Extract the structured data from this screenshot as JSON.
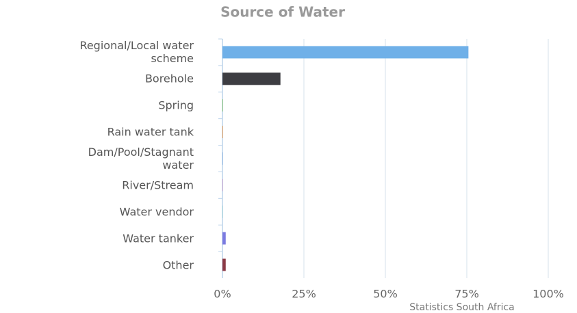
{
  "chart_data": {
    "type": "bar",
    "orientation": "horizontal",
    "title": "Source of Water",
    "categories": [
      "Regional/Local water scheme",
      "Borehole",
      "Spring",
      "Rain water tank",
      "Dam/Pool/Stagnant water",
      "River/Stream",
      "Water vendor",
      "Water tanker",
      "Other"
    ],
    "values": [
      75.5,
      17.8,
      0.2,
      0.2,
      0.1,
      0.1,
      0.1,
      1.0,
      1.0
    ],
    "colors": [
      "#6fb0e8",
      "#3d3d42",
      "#8fc77a",
      "#e8a25f",
      "#5c8fd6",
      "#c06fb0",
      "#7fc6c6",
      "#7b7be0",
      "#8b3a46"
    ],
    "xlim": [
      0,
      100
    ],
    "xticks": [
      {
        "value": 0,
        "label": "0%"
      },
      {
        "value": 25,
        "label": "25%"
      },
      {
        "value": 50,
        "label": "50%"
      },
      {
        "value": 75,
        "label": "75%"
      },
      {
        "value": 100,
        "label": "100%"
      }
    ],
    "grid": true,
    "annotation": "Statistics South Africa"
  }
}
